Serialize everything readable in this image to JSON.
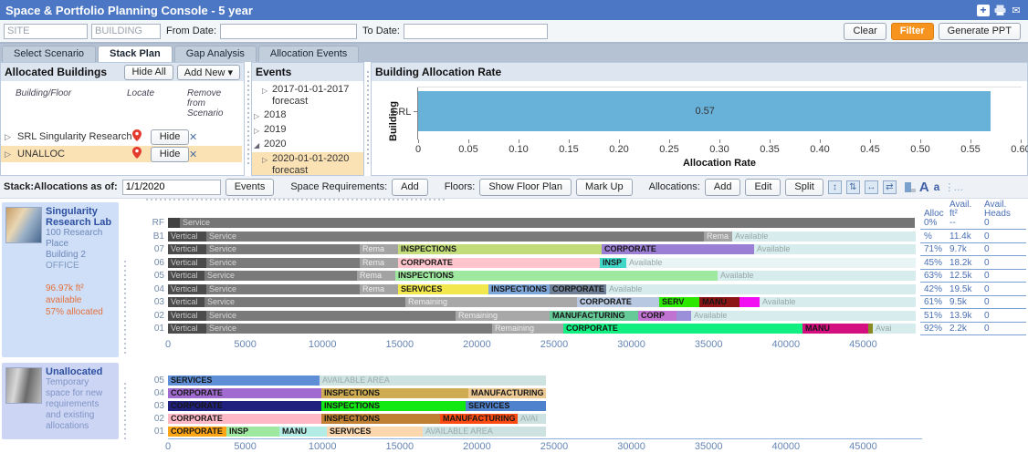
{
  "titlebar": {
    "title": "Space & Portfolio Planning Console - 5 year"
  },
  "icons": {
    "plus": "+",
    "mail": "✉",
    "caret": "▾",
    "tree_collapsed": "▷",
    "tree_expanded": "◢",
    "remove": "✕",
    "expand_v": "↕",
    "collapse_v": "⇅",
    "expand_h": "↔",
    "collapse_h": "⇄",
    "font_big": "A",
    "font_small": "a",
    "more": "⋮…"
  },
  "filters": {
    "site_placeholder": "SITE",
    "building_placeholder": "BUILDING",
    "from_label": "From Date:",
    "to_label": "To Date:",
    "clear": "Clear",
    "filter": "Filter",
    "generate": "Generate PPT"
  },
  "tabs": [
    {
      "label": "Select Scenario"
    },
    {
      "label": "Stack Plan"
    },
    {
      "label": "Gap Analysis"
    },
    {
      "label": "Allocation Events"
    }
  ],
  "allocated": {
    "title": "Allocated Buildings",
    "hide_all": "Hide All",
    "add_new": "Add New",
    "col_building": "Building/Floor",
    "col_locate": "Locate",
    "col_remove": "Remove from Scenario",
    "rows": [
      {
        "name": "SRL Singularity Research Lab",
        "hide": "Hide"
      },
      {
        "name": "UNALLOC",
        "hide": "Hide"
      }
    ]
  },
  "events_panel": {
    "title": "Events",
    "items": [
      {
        "label": "2017-01-01-2017 forecast",
        "level": 1,
        "state": "collapsed",
        "selected": false
      },
      {
        "label": "2018",
        "level": 0,
        "state": "collapsed",
        "selected": false
      },
      {
        "label": "2019",
        "level": 0,
        "state": "collapsed",
        "selected": false
      },
      {
        "label": "2020",
        "level": 0,
        "state": "expanded",
        "selected": false
      },
      {
        "label": "2020-01-01-2020 forecast",
        "level": 1,
        "state": "collapsed",
        "selected": true
      }
    ]
  },
  "chart_data": {
    "type": "bar",
    "orientation": "horizontal",
    "title": "Building Allocation Rate",
    "ylabel": "Building",
    "xlabel": "Allocation Rate",
    "categories": [
      "SRL"
    ],
    "values": [
      0.57
    ],
    "labels": [
      "0.57"
    ],
    "xlim": [
      0,
      0.6
    ],
    "xticks": [
      "0",
      "0.05",
      "0.10",
      "0.15",
      "0.20",
      "0.25",
      "0.30",
      "0.35",
      "0.40",
      "0.45",
      "0.50",
      "0.55",
      "0.60"
    ],
    "bar_color": "#68b1d8",
    "legend": "none",
    "grid": false
  },
  "stack_toolbar": {
    "as_of_label": "Stack:Allocations as of:",
    "as_of_value": "1/1/2020",
    "events_btn": "Events",
    "space_req_label": "Space Requirements:",
    "add_btn": "Add",
    "floors_label": "Floors:",
    "show_floor_plan": "Show Floor Plan",
    "mark_up": "Mark Up",
    "allocations_label": "Allocations:",
    "alloc_add": "Add",
    "alloc_edit": "Edit",
    "alloc_split": "Split"
  },
  "srl": {
    "card": {
      "name": "Singularity Research Lab",
      "address": "100 Research Place",
      "building": "Building 2",
      "type": "OFFICE",
      "available": "96.97k ft² available",
      "allocated": "57% allocated"
    },
    "floors": [
      {
        "floor": "RF",
        "segments": [
          {
            "label": "",
            "color": "#414141",
            "text": "#cfcfcf",
            "value": 770
          },
          {
            "label": "Service",
            "color": "#757575",
            "text": "#d6d6d6",
            "value": 47600
          }
        ]
      },
      {
        "floor": "B1",
        "segments": [
          {
            "label": "Vertical",
            "color": "#4b4b4b",
            "text": "#c9c9c9",
            "value": 2480
          },
          {
            "label": "Service",
            "color": "#7a7a7a",
            "text": "#d6d6d6",
            "value": 32200
          },
          {
            "label": "Rema",
            "color": "#a3a3a3",
            "text": "#eeeeee",
            "value": 1830
          },
          {
            "label": "Available",
            "color": "#d7eded",
            "text": "#97a6a6",
            "value": 11880
          }
        ]
      },
      {
        "floor": "07",
        "segments": [
          {
            "label": "Vertical",
            "color": "#4b4b4b",
            "text": "#c9c9c9",
            "value": 2480
          },
          {
            "label": "Service",
            "color": "#7a7a7a",
            "text": "#d6d6d6",
            "value": 9930
          },
          {
            "label": "Rema",
            "color": "#a3a3a3",
            "text": "#eeeeee",
            "value": 2480
          },
          {
            "label": "INSPECTIONS",
            "color": "#c3dc7a",
            "value": 13180
          },
          {
            "label": "CORPORATE",
            "color": "#9b7fd4",
            "value": 9870
          },
          {
            "label": "Available",
            "color": "#d7eded",
            "text": "#97a6a6",
            "value": 10460
          }
        ]
      },
      {
        "floor": "06",
        "segments": [
          {
            "label": "Vertical",
            "color": "#4b4b4b",
            "text": "#c9c9c9",
            "value": 2480
          },
          {
            "label": "Service",
            "color": "#7a7a7a",
            "text": "#d6d6d6",
            "value": 9930
          },
          {
            "label": "Rema",
            "color": "#a3a3a3",
            "text": "#eeeeee",
            "value": 2480
          },
          {
            "label": "CORPORATE",
            "color": "#ffc4cc",
            "value": 13060
          },
          {
            "label": "INSP",
            "color": "#3fd6c8",
            "value": 1710
          },
          {
            "label": "Available",
            "color": "#e9f4f4",
            "text": "#97a6a6",
            "value": 18730
          }
        ]
      },
      {
        "floor": "05",
        "segments": [
          {
            "label": "Vertical",
            "color": "#4b4b4b",
            "text": "#c9c9c9",
            "value": 2360
          },
          {
            "label": "Service",
            "color": "#7a7a7a",
            "text": "#d6d6d6",
            "value": 9870
          },
          {
            "label": "Rema",
            "color": "#a3a3a3",
            "text": "#eeeeee",
            "value": 2480
          },
          {
            "label": "INSPECTIONS",
            "color": "#9fe89f",
            "value": 20860
          },
          {
            "label": "Available",
            "color": "#d7eded",
            "text": "#97a6a6",
            "value": 12820
          }
        ]
      },
      {
        "floor": "04",
        "segments": [
          {
            "label": "Vertical",
            "color": "#4b4b4b",
            "text": "#c9c9c9",
            "value": 2480
          },
          {
            "label": "Service",
            "color": "#7a7a7a",
            "text": "#d6d6d6",
            "value": 9930
          },
          {
            "label": "Rema",
            "color": "#a3a3a3",
            "text": "#eeeeee",
            "value": 2480
          },
          {
            "label": "SERVICES",
            "color": "#f2e84e",
            "value": 5850
          },
          {
            "label": "INSPECTIONS",
            "color": "#7da6d9",
            "value": 3960
          },
          {
            "label": "CORPORATE",
            "color": "#6f8096",
            "value": 3660
          },
          {
            "label": "Available",
            "color": "#d7eded",
            "text": "#97a6a6",
            "value": 20030
          }
        ]
      },
      {
        "floor": "03",
        "segments": [
          {
            "label": "Vertical",
            "color": "#4b4b4b",
            "text": "#c9c9c9",
            "value": 2360
          },
          {
            "label": "Service",
            "color": "#7a7a7a",
            "text": "#d6d6d6",
            "value": 13000
          },
          {
            "label": "Remaining",
            "color": "#a8a8a8",
            "text": "#eeeeee",
            "value": 11110
          },
          {
            "label": "CORPORATE",
            "color": "#b7c8e0",
            "value": 5320
          },
          {
            "label": "SERV",
            "color": "#2ce800",
            "value": 2600
          },
          {
            "label": "MANU",
            "color": "#8c1414",
            "value": 2600
          },
          {
            "label": "",
            "color": "#f20cf2",
            "value": 1300
          },
          {
            "label": "Available",
            "color": "#d7eded",
            "text": "#97a6a6",
            "value": 10100
          }
        ]
      },
      {
        "floor": "02",
        "segments": [
          {
            "label": "Vertical",
            "color": "#4b4b4b",
            "text": "#c9c9c9",
            "value": 2480
          },
          {
            "label": "Service",
            "color": "#7a7a7a",
            "text": "#d6d6d6",
            "value": 16130
          },
          {
            "label": "Remaining",
            "color": "#a8a8a8",
            "text": "#eeeeee",
            "value": 6090
          },
          {
            "label": "MANUFACTURING",
            "color": "#66c998",
            "value": 5730
          },
          {
            "label": "CORP",
            "color": "#c173d2",
            "value": 2480
          },
          {
            "label": "",
            "color": "#9b8fd9",
            "value": 950
          },
          {
            "label": "Available",
            "color": "#d7eded",
            "text": "#97a6a6",
            "value": 14540
          }
        ]
      },
      {
        "floor": "01",
        "segments": [
          {
            "label": "Vertical",
            "color": "#4b4b4b",
            "text": "#c9c9c9",
            "value": 2480
          },
          {
            "label": "Service",
            "color": "#7a7a7a",
            "text": "#d6d6d6",
            "value": 18500
          },
          {
            "label": "Remaining",
            "color": "#a8a8a8",
            "text": "#eeeeee",
            "value": 4610
          },
          {
            "label": "CORPORATE",
            "color": "#10ef80",
            "value": 15480
          },
          {
            "label": "MANU",
            "color": "#d40f80",
            "value": 4250
          },
          {
            "label": "",
            "color": "#8a8a24",
            "value": 300
          },
          {
            "label": "Avai",
            "color": "#d7eded",
            "text": "#97a6a6",
            "value": 2780
          }
        ]
      }
    ],
    "axis": [
      "0",
      "5000",
      "10000",
      "15000",
      "20000",
      "25000",
      "30000",
      "35000",
      "40000",
      "45000"
    ]
  },
  "unalloc": {
    "card": {
      "name": "Unallocated",
      "description": "Temporary space for new requirements and existing allocations"
    },
    "floors": [
      {
        "floor": "05",
        "segments": [
          {
            "label": "SERVICES",
            "color": "#5d8ed6",
            "value": 9810
          },
          {
            "label": "AVAILABLE AREA",
            "color": "#cfe2e2",
            "text": "#9aabab",
            "value": 14660
          }
        ]
      },
      {
        "floor": "04",
        "segments": [
          {
            "label": "CORPORATE",
            "color": "#a06ad0",
            "value": 9930
          },
          {
            "label": "INSPECTIONS",
            "color": "#cfac52",
            "value": 9510
          },
          {
            "label": "MANUFACTURING",
            "color": "#ecc893",
            "value": 5020
          }
        ]
      },
      {
        "floor": "03",
        "segments": [
          {
            "label": "CORPORATE",
            "color": "#20207e",
            "value": 9930
          },
          {
            "label": "INSPECTIONS",
            "color": "#12e812",
            "value": 9340
          },
          {
            "label": "SERVICES",
            "color": "#4e82cc",
            "value": 5200
          }
        ]
      },
      {
        "floor": "02",
        "segments": [
          {
            "label": "CORPORATE",
            "color": "#ffb9c6",
            "value": 9930
          },
          {
            "label": "INSPECTIONS",
            "color": "#bf8034",
            "value": 7680
          },
          {
            "label": "MANUFACTURING",
            "color": "#ff4b12",
            "value": 5020
          },
          {
            "label": "AVAI",
            "color": "#cfe2e2",
            "text": "#9aabab",
            "value": 1830
          }
        ]
      },
      {
        "floor": "01",
        "segments": [
          {
            "label": "CORPORATE",
            "color": "#ffa516",
            "value": 3780
          },
          {
            "label": "INSP",
            "color": "#9fe89f",
            "value": 3430
          },
          {
            "label": "MANU",
            "color": "#b2ece4",
            "value": 3070
          },
          {
            "label": "SERVICES",
            "color": "#fcd6ac",
            "value": 6200
          },
          {
            "label": "AVAILABLE AREA",
            "color": "#cfe2e2",
            "text": "#9aabab",
            "value": 7980
          }
        ]
      }
    ],
    "axis": [
      "0",
      "5000",
      "10000",
      "15000",
      "20000",
      "25000",
      "30000",
      "35000",
      "40000",
      "45000"
    ]
  },
  "table": {
    "headers": {
      "alloc": "Alloc",
      "sqft1": "Avail.",
      "sqft2": "ft²",
      "heads1": "Avail.",
      "heads2": "Heads"
    },
    "rows": [
      {
        "alloc": "0%",
        "sqft": "--",
        "heads": "0"
      },
      {
        "alloc": "%",
        "sqft": "11.4k",
        "heads": "0"
      },
      {
        "alloc": "71%",
        "sqft": "9.7k",
        "heads": "0"
      },
      {
        "alloc": "45%",
        "sqft": "18.2k",
        "heads": "0"
      },
      {
        "alloc": "63%",
        "sqft": "12.5k",
        "heads": "0"
      },
      {
        "alloc": "42%",
        "sqft": "19.5k",
        "heads": "0"
      },
      {
        "alloc": "61%",
        "sqft": "9.5k",
        "heads": "0"
      },
      {
        "alloc": "51%",
        "sqft": "13.9k",
        "heads": "0"
      },
      {
        "alloc": "92%",
        "sqft": "2.2k",
        "heads": "0"
      }
    ]
  }
}
